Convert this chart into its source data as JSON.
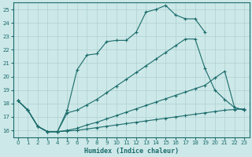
{
  "xlabel": "Humidex (Indice chaleur)",
  "background_color": "#cde8e8",
  "grid_color": "#aed0d0",
  "line_color": "#1a6b6b",
  "xlim": [
    -0.5,
    23.5
  ],
  "ylim": [
    15.5,
    25.5
  ],
  "xticks": [
    0,
    1,
    2,
    3,
    4,
    5,
    6,
    7,
    8,
    9,
    10,
    11,
    12,
    13,
    14,
    15,
    16,
    17,
    18,
    19,
    20,
    21,
    22,
    23
  ],
  "yticks": [
    16,
    17,
    18,
    19,
    20,
    21,
    22,
    23,
    24,
    25
  ],
  "line1_x": [
    0,
    1,
    2,
    3,
    4,
    5,
    6,
    7,
    8,
    9,
    10,
    11,
    12,
    13,
    14,
    15,
    16,
    17,
    18,
    19
  ],
  "line1_y": [
    18.2,
    17.5,
    16.3,
    15.9,
    15.9,
    17.5,
    20.5,
    21.6,
    21.7,
    22.6,
    22.7,
    22.7,
    23.3,
    24.8,
    25.0,
    25.3,
    24.6,
    24.3,
    24.3,
    23.3
  ],
  "line2_x": [
    0,
    1,
    2,
    3,
    4,
    5,
    6,
    7,
    8,
    9,
    10,
    11,
    12,
    13,
    14,
    15,
    16,
    17,
    18,
    19,
    20,
    21,
    22,
    23
  ],
  "line2_y": [
    18.2,
    17.5,
    16.3,
    15.9,
    15.9,
    17.3,
    17.5,
    17.9,
    18.3,
    18.8,
    19.3,
    19.8,
    20.3,
    20.8,
    21.3,
    21.8,
    22.3,
    22.8,
    22.8,
    20.6,
    19.0,
    18.3,
    17.7,
    17.5
  ],
  "line3_x": [
    0,
    1,
    2,
    3,
    4,
    5,
    6,
    7,
    8,
    9,
    10,
    11,
    12,
    13,
    14,
    15,
    16,
    17,
    18,
    19,
    20,
    21,
    22,
    23
  ],
  "line3_y": [
    18.2,
    17.5,
    16.3,
    15.9,
    15.9,
    16.0,
    16.15,
    16.4,
    16.6,
    16.85,
    17.1,
    17.35,
    17.6,
    17.85,
    18.1,
    18.35,
    18.6,
    18.85,
    19.1,
    19.35,
    19.9,
    20.4,
    17.7,
    17.5
  ],
  "line4_x": [
    0,
    1,
    2,
    3,
    4,
    5,
    6,
    7,
    8,
    9,
    10,
    11,
    12,
    13,
    14,
    15,
    16,
    17,
    18,
    19,
    20,
    21,
    22,
    23
  ],
  "line4_y": [
    18.2,
    17.5,
    16.3,
    15.9,
    15.9,
    15.95,
    16.0,
    16.1,
    16.2,
    16.3,
    16.4,
    16.5,
    16.6,
    16.7,
    16.8,
    16.9,
    17.0,
    17.1,
    17.2,
    17.3,
    17.4,
    17.5,
    17.55,
    17.6
  ]
}
